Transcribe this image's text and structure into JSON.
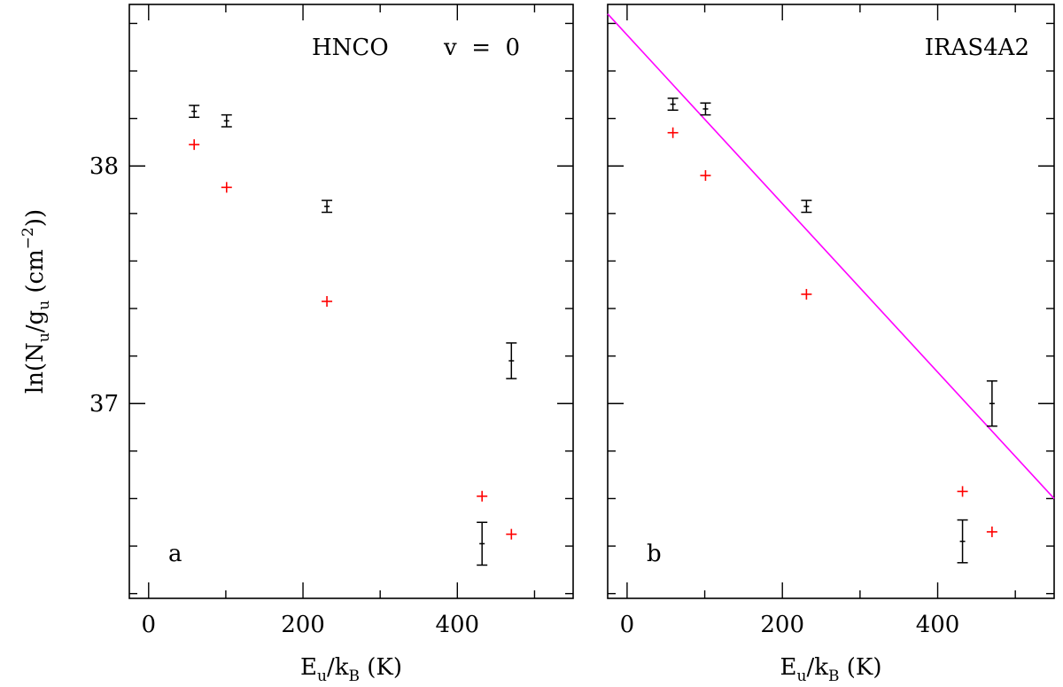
{
  "chart_data": {
    "type": "scatter",
    "ylabel": {
      "prefix": "ln(N",
      "sub1": "u",
      "mid": "/g",
      "sub2": "u",
      "unit_open": " (cm",
      "sup": "−2",
      "unit_close": "))"
    },
    "xlabel": {
      "prefix": "E",
      "sub1": "u",
      "mid": "/k",
      "sub2": "B",
      "unit": " (K)"
    },
    "xlim": [
      -25,
      550
    ],
    "ylim": [
      36.18,
      38.68
    ],
    "xticks_major": [
      0,
      200,
      400
    ],
    "xticks_minor": [
      100,
      300,
      500
    ],
    "yticks_major": [
      37,
      38
    ],
    "yticks_minor": [
      36.2,
      36.4,
      36.6,
      36.8,
      37.2,
      37.4,
      37.6,
      37.8,
      38.2,
      38.4,
      38.6
    ],
    "panels": [
      {
        "id": "a",
        "letter": "a",
        "title": "HNCO",
        "title_right": "v  =  0",
        "observed": [
          {
            "x": 59,
            "y": 38.23,
            "err": 0.025
          },
          {
            "x": 101,
            "y": 38.19,
            "err": 0.025
          },
          {
            "x": 231,
            "y": 37.83,
            "err": 0.025
          },
          {
            "x": 432,
            "y": 36.41,
            "err": 0.09
          },
          {
            "x": 470,
            "y": 37.18,
            "err": 0.075
          }
        ],
        "model": [
          {
            "x": 59,
            "y": 38.09
          },
          {
            "x": 101,
            "y": 37.91
          },
          {
            "x": 231,
            "y": 37.43
          },
          {
            "x": 432,
            "y": 36.61
          },
          {
            "x": 470,
            "y": 36.45
          }
        ]
      },
      {
        "id": "b",
        "letter": "b",
        "title": "IRAS4A2",
        "title_right": "",
        "observed": [
          {
            "x": 59,
            "y": 38.26,
            "err": 0.025
          },
          {
            "x": 101,
            "y": 38.24,
            "err": 0.025
          },
          {
            "x": 231,
            "y": 37.83,
            "err": 0.025
          },
          {
            "x": 432,
            "y": 36.42,
            "err": 0.09
          },
          {
            "x": 470,
            "y": 37.0,
            "err": 0.095
          }
        ],
        "model": [
          {
            "x": 59,
            "y": 38.14
          },
          {
            "x": 101,
            "y": 37.96
          },
          {
            "x": 231,
            "y": 37.46
          },
          {
            "x": 432,
            "y": 36.63
          },
          {
            "x": 470,
            "y": 36.46
          }
        ],
        "fit": {
          "x0": -25,
          "y0": 38.64,
          "x1": 550,
          "y1": 36.6
        }
      }
    ],
    "colors": {
      "observed": "#000000",
      "model": "#ff0000",
      "fit": "#ff00ff"
    }
  }
}
